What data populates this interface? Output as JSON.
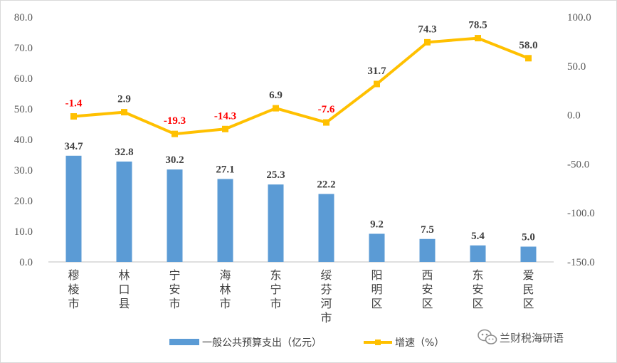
{
  "chart_data": {
    "type": "bar",
    "categories": [
      "穆棱市",
      "林口县",
      "宁安市",
      "海林市",
      "东宁市",
      "绥芬河市",
      "阳明区",
      "西安区",
      "东安区",
      "爱民区"
    ],
    "series": [
      {
        "name": "一般公共预算支出（亿元）",
        "type": "bar",
        "axis": "left",
        "color": "#5B9BD5",
        "values": [
          34.7,
          32.8,
          30.2,
          27.1,
          25.3,
          22.2,
          9.2,
          7.5,
          5.4,
          5.0
        ],
        "labels": [
          "34.7",
          "32.8",
          "30.2",
          "27.1",
          "25.3",
          "22.2",
          "9.2",
          "7.5",
          "5.4",
          "5.0"
        ]
      },
      {
        "name": "增速（%）",
        "type": "line",
        "axis": "right",
        "color": "#FFC000",
        "values": [
          -1.4,
          2.9,
          -19.3,
          -14.3,
          6.9,
          -7.6,
          31.7,
          74.3,
          78.5,
          58.0
        ],
        "labels": [
          "-1.4",
          "2.9",
          "-19.3",
          "-14.3",
          "6.9",
          "-7.6",
          "31.7",
          "74.3",
          "78.5",
          "58.0"
        ]
      }
    ],
    "ylim": [
      0,
      80
    ],
    "y2lim": [
      -150,
      100
    ],
    "y_ticks": [
      "0.0",
      "10.0",
      "20.0",
      "30.0",
      "40.0",
      "50.0",
      "60.0",
      "70.0",
      "80.0"
    ],
    "y2_ticks": [
      "-150.0",
      "-100.0",
      "-50.0",
      "0.0",
      "50.0",
      "100.0"
    ],
    "negative_label_color": "#FF0000",
    "positive_label_color": "#404040",
    "grid": false,
    "legend": "bottom"
  },
  "watermark": {
    "text": "兰财税海研语",
    "icon": "wechat-icon"
  }
}
